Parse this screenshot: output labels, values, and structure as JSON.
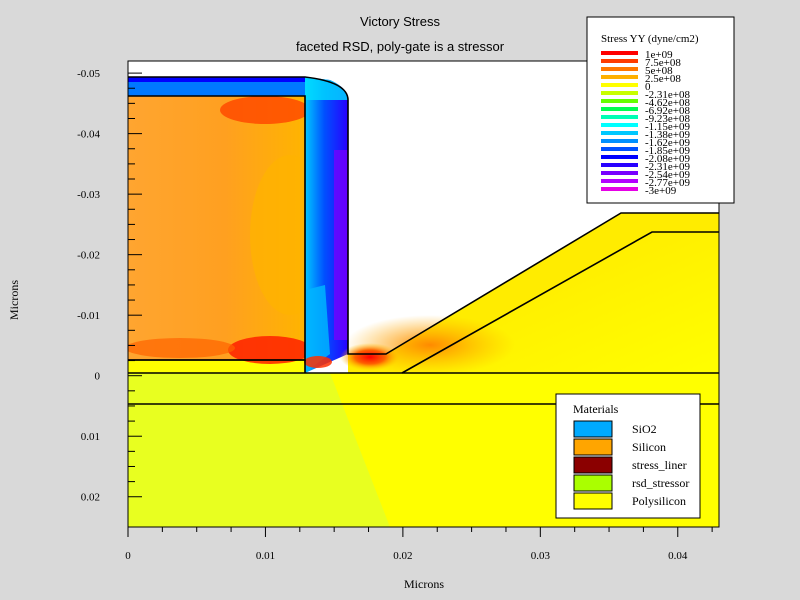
{
  "plot": {
    "title": "Victory Stress",
    "subtitle": "faceted RSD, poly-gate is a stressor",
    "x_label": "Microns",
    "y_label": "Microns"
  },
  "chart_data": {
    "type": "contour",
    "quantity": "Stress YY (dyne/cm2)",
    "x_range": [
      0,
      0.043
    ],
    "y_range": [
      -0.052,
      0.025
    ],
    "y_axis_inverted": true,
    "x_ticks": [
      {
        "value": 0,
        "label": "0"
      },
      {
        "value": 0.01,
        "label": "0.01"
      },
      {
        "value": 0.02,
        "label": "0.02"
      },
      {
        "value": 0.03,
        "label": "0.03"
      },
      {
        "value": 0.04,
        "label": "0.04"
      }
    ],
    "y_ticks": [
      {
        "value": -0.05,
        "label": "-0.05"
      },
      {
        "value": -0.04,
        "label": "-0.04"
      },
      {
        "value": -0.03,
        "label": "-0.03"
      },
      {
        "value": -0.02,
        "label": "-0.02"
      },
      {
        "value": -0.01,
        "label": "-0.01"
      },
      {
        "value": 0,
        "label": "0"
      },
      {
        "value": 0.01,
        "label": "0.01"
      },
      {
        "value": 0.02,
        "label": "0.02"
      }
    ]
  },
  "stress_legend": {
    "title": "Stress YY (dyne/cm2)",
    "entries": [
      {
        "label": "1e+09",
        "color": "#ff0000"
      },
      {
        "label": "7.5e+08",
        "color": "#ff3c00"
      },
      {
        "label": "5e+08",
        "color": "#ff7800"
      },
      {
        "label": "2.5e+08",
        "color": "#ffb000"
      },
      {
        "label": "0",
        "color": "#ffff00"
      },
      {
        "label": "-2.31e+08",
        "color": "#c8ff00"
      },
      {
        "label": "-4.62e+08",
        "color": "#64ff00"
      },
      {
        "label": "-6.92e+08",
        "color": "#00ff50"
      },
      {
        "label": "-9.23e+08",
        "color": "#00ffb4"
      },
      {
        "label": "-1.15e+09",
        "color": "#00ffff"
      },
      {
        "label": "-1.38e+09",
        "color": "#00c8ff"
      },
      {
        "label": "-1.62e+09",
        "color": "#0090ff"
      },
      {
        "label": "-1.85e+09",
        "color": "#0050ff"
      },
      {
        "label": "-2.08e+09",
        "color": "#0000ff"
      },
      {
        "label": "-2.31e+09",
        "color": "#2800ff"
      },
      {
        "label": "-2.54e+09",
        "color": "#7800ff"
      },
      {
        "label": "-2.77e+09",
        "color": "#b400ff"
      },
      {
        "label": "-3e+09",
        "color": "#e600e6"
      }
    ]
  },
  "materials_legend": {
    "title": "Materials",
    "items": [
      {
        "label": "SiO2",
        "color": "#00aaff"
      },
      {
        "label": "Silicon",
        "color": "#ffa500"
      },
      {
        "label": "stress_liner",
        "color": "#8b0000"
      },
      {
        "label": "rsd_stressor",
        "color": "#aaff00"
      },
      {
        "label": "Polysilicon",
        "color": "#ffff00"
      }
    ]
  }
}
